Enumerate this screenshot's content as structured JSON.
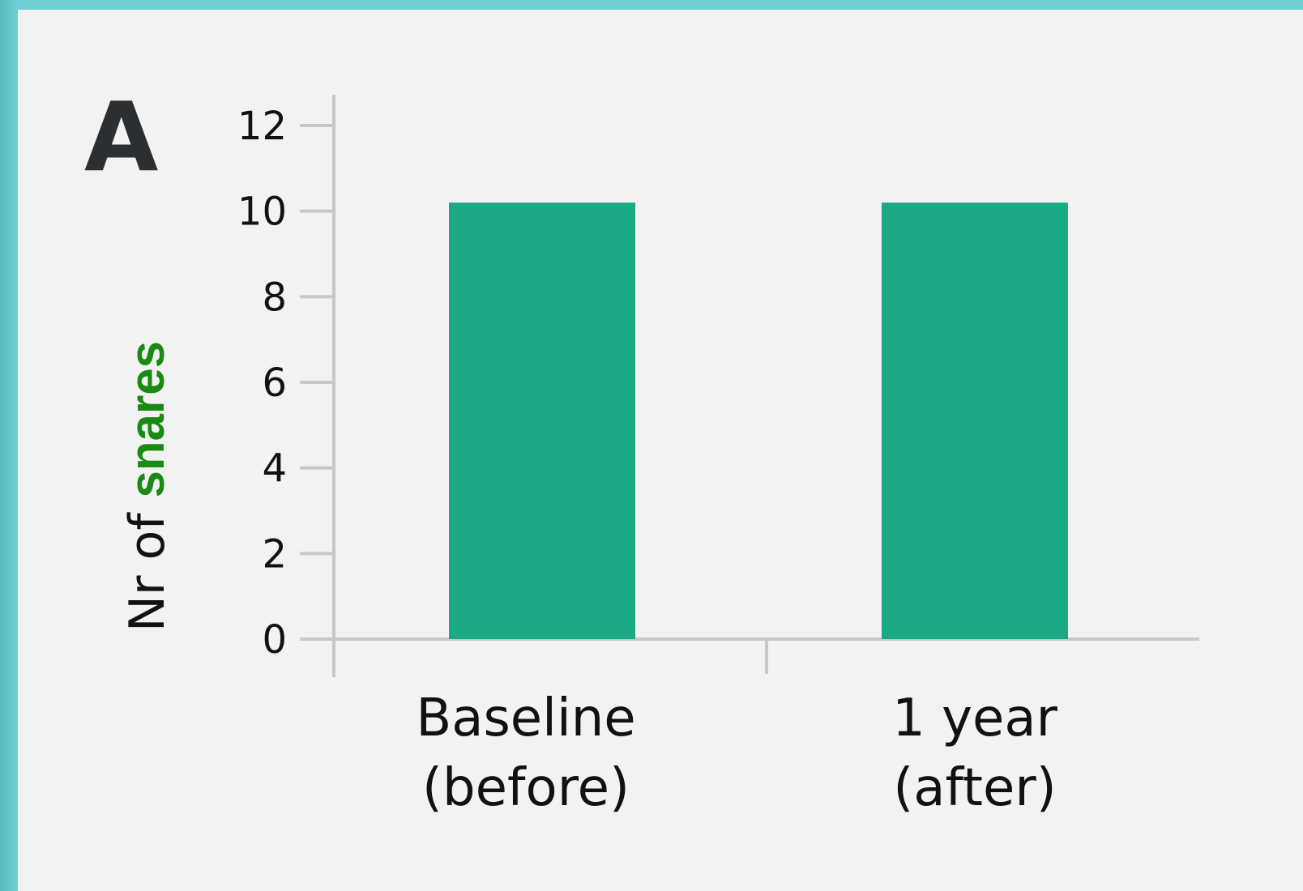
{
  "panel_label": "A",
  "colors": {
    "bar": "#1aaa86",
    "axis": "#c8c8c8",
    "label_accent": "#198a14",
    "frame": "#6fd0d4",
    "background": "#f2f2f2"
  },
  "chart_data": {
    "type": "bar",
    "categories": [
      [
        "Baseline",
        "(before)"
      ],
      [
        "1 year",
        "(after)"
      ]
    ],
    "values": [
      10.2,
      10.2
    ],
    "ylabel_parts": [
      "Nr of ",
      "snares"
    ],
    "ylim": [
      0,
      12
    ],
    "yticks": [
      "0",
      "2",
      "4",
      "6",
      "8",
      "10",
      "12"
    ],
    "grid": false,
    "legend": "none"
  }
}
